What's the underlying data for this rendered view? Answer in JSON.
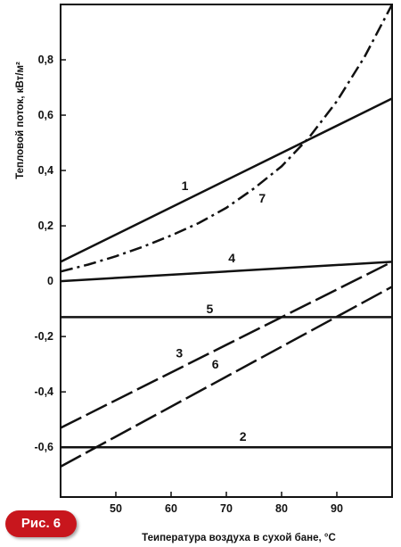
{
  "figure_label": "Рис. 6",
  "chart_data": {
    "type": "line",
    "xlabel": "Теипература воздуха в сухой бане, °С",
    "ylabel": "Тепловой поток, кВт/м²",
    "xlim": [
      40,
      100
    ],
    "ylim": [
      -0.78,
      1.0
    ],
    "x_ticks": [
      "50",
      "60",
      "70",
      "80",
      "90"
    ],
    "x_tick_values": [
      50,
      60,
      70,
      80,
      90
    ],
    "y_ticks": [
      "0,8",
      "0,6",
      "0,4",
      "0,2",
      "0",
      "-0,2",
      "-0,4",
      "-0,6"
    ],
    "y_tick_values": [
      0.8,
      0.6,
      0.4,
      0.2,
      0,
      -0.2,
      -0.4,
      -0.6
    ],
    "grid": false,
    "series": [
      {
        "label": "1",
        "style": "solid",
        "points": [
          [
            40,
            0.07
          ],
          [
            100,
            0.66
          ]
        ]
      },
      {
        "label": "2",
        "style": "solid",
        "points": [
          [
            40,
            -0.6
          ],
          [
            100,
            -0.6
          ]
        ]
      },
      {
        "label": "3",
        "style": "dash",
        "points": [
          [
            40,
            -0.53
          ],
          [
            100,
            0.07
          ]
        ]
      },
      {
        "label": "4",
        "style": "solid",
        "points": [
          [
            40,
            0.0
          ],
          [
            100,
            0.07
          ]
        ]
      },
      {
        "label": "5",
        "style": "solid",
        "points": [
          [
            40,
            -0.13
          ],
          [
            100,
            -0.13
          ]
        ]
      },
      {
        "label": "6",
        "style": "dash",
        "points": [
          [
            40,
            -0.67
          ],
          [
            100,
            -0.02
          ]
        ]
      },
      {
        "label": "7",
        "style": "dashdot",
        "points": [
          [
            40,
            0.035
          ],
          [
            45,
            0.06
          ],
          [
            50,
            0.09
          ],
          [
            55,
            0.125
          ],
          [
            60,
            0.165
          ],
          [
            65,
            0.21
          ],
          [
            70,
            0.265
          ],
          [
            75,
            0.335
          ],
          [
            80,
            0.415
          ],
          [
            85,
            0.52
          ],
          [
            90,
            0.65
          ],
          [
            95,
            0.81
          ],
          [
            100,
            1.0
          ]
        ]
      }
    ],
    "label_positions": [
      {
        "label": "1",
        "x": 62.5,
        "y": 0.345
      },
      {
        "label": "7",
        "x": 76.5,
        "y": 0.3
      },
      {
        "label": "4",
        "x": 71.0,
        "y": 0.085
      },
      {
        "label": "5",
        "x": 67.0,
        "y": -0.1
      },
      {
        "label": "3",
        "x": 61.5,
        "y": -0.26
      },
      {
        "label": "6",
        "x": 68.0,
        "y": -0.3
      },
      {
        "label": "2",
        "x": 73.0,
        "y": -0.56
      }
    ]
  }
}
